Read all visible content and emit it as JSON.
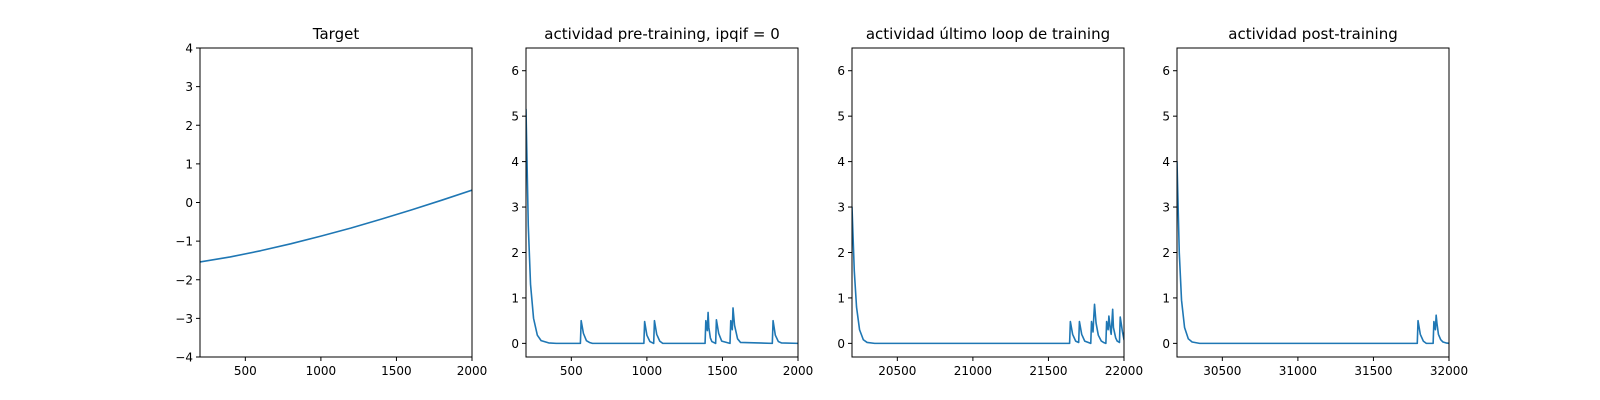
{
  "chart_data": [
    {
      "type": "line",
      "title": "Target",
      "xlabel": "",
      "ylabel": "",
      "xlim": [
        200,
        2000
      ],
      "ylim": [
        -4,
        4
      ],
      "xticks": [
        500,
        1000,
        1500,
        2000
      ],
      "xtick_labels": [
        "500",
        "1000",
        "1500",
        "2000"
      ],
      "yticks": [
        -4,
        -3,
        -2,
        -1,
        0,
        1,
        2,
        3,
        4
      ],
      "ytick_labels": [
        "−4",
        "−3",
        "−2",
        "−1",
        "0",
        "1",
        "2",
        "3",
        "4"
      ],
      "grid": false,
      "series": [
        {
          "color": "#1f77b4",
          "x": [
            200,
            400,
            600,
            800,
            1000,
            1200,
            1400,
            1600,
            1800,
            2000
          ],
          "y": [
            -1.54,
            -1.41,
            -1.25,
            -1.07,
            -0.87,
            -0.66,
            -0.43,
            -0.19,
            0.06,
            0.32
          ]
        }
      ]
    },
    {
      "type": "line",
      "title": "actividad pre-training, ipqif = 0",
      "xlabel": "",
      "ylabel": "",
      "xlim": [
        200,
        2000
      ],
      "ylim": [
        -0.3,
        6.5
      ],
      "xticks": [
        500,
        1000,
        1500,
        2000
      ],
      "xtick_labels": [
        "500",
        "1000",
        "1500",
        "2000"
      ],
      "yticks": [
        0,
        1,
        2,
        3,
        4,
        5,
        6
      ],
      "ytick_labels": [
        "0",
        "1",
        "2",
        "3",
        "4",
        "5",
        "6"
      ],
      "grid": false,
      "series": [
        {
          "color": "#1f77b4",
          "x": [
            200,
            215,
            230,
            250,
            275,
            300,
            350,
            400,
            560,
            565,
            580,
            600,
            620,
            640,
            980,
            985,
            1000,
            1020,
            1045,
            1050,
            1065,
            1085,
            1105,
            1385,
            1390,
            1400,
            1405,
            1410,
            1420,
            1430,
            1455,
            1460,
            1475,
            1495,
            1550,
            1555,
            1565,
            1570,
            1580,
            1600,
            1620,
            1830,
            1835,
            1850,
            1870,
            1890,
            2000
          ],
          "y": [
            5.15,
            2.6,
            1.3,
            0.55,
            0.18,
            0.06,
            0.01,
            0.0,
            0.0,
            0.5,
            0.22,
            0.06,
            0.02,
            0.0,
            0.0,
            0.48,
            0.18,
            0.04,
            0.0,
            0.5,
            0.2,
            0.05,
            0.0,
            0.0,
            0.5,
            0.28,
            0.68,
            0.35,
            0.12,
            0.04,
            0.0,
            0.52,
            0.22,
            0.05,
            0.0,
            0.5,
            0.3,
            0.78,
            0.4,
            0.1,
            0.02,
            0.0,
            0.5,
            0.18,
            0.04,
            0.01,
            0.0
          ]
        }
      ]
    },
    {
      "type": "line",
      "title": "actividad último loop de training",
      "xlabel": "",
      "ylabel": "",
      "xlim": [
        20200,
        22000
      ],
      "ylim": [
        -0.3,
        6.5
      ],
      "xticks": [
        20500,
        21000,
        21500,
        22000
      ],
      "xtick_labels": [
        "20500",
        "21000",
        "21500",
        "22000"
      ],
      "yticks": [
        0,
        1,
        2,
        3,
        4,
        5,
        6
      ],
      "ytick_labels": [
        "0",
        "1",
        "2",
        "3",
        "4",
        "5",
        "6"
      ],
      "grid": false,
      "series": [
        {
          "color": "#1f77b4",
          "x": [
            20200,
            20215,
            20230,
            20250,
            20275,
            20300,
            20350,
            20400,
            21640,
            21645,
            21660,
            21680,
            21700,
            21705,
            21720,
            21740,
            21780,
            21785,
            21795,
            21800,
            21805,
            21815,
            21830,
            21850,
            21865,
            21880,
            21885,
            21895,
            21900,
            21910,
            21915,
            21925,
            21930,
            21945,
            21955,
            21970,
            21975,
            21990,
            22000
          ],
          "y": [
            3.0,
            1.6,
            0.8,
            0.3,
            0.08,
            0.02,
            0.0,
            0.0,
            0.0,
            0.48,
            0.2,
            0.05,
            0.02,
            0.48,
            0.2,
            0.05,
            0.0,
            0.48,
            0.25,
            0.58,
            0.86,
            0.45,
            0.18,
            0.05,
            0.02,
            0.0,
            0.48,
            0.3,
            0.6,
            0.3,
            0.2,
            0.75,
            0.35,
            0.12,
            0.05,
            0.02,
            0.58,
            0.25,
            0.08
          ]
        }
      ]
    },
    {
      "type": "line",
      "title": "actividad post-training",
      "xlabel": "",
      "ylabel": "",
      "xlim": [
        30200,
        32000
      ],
      "ylim": [
        -0.3,
        6.5
      ],
      "xticks": [
        30500,
        31000,
        31500,
        32000
      ],
      "xtick_labels": [
        "30500",
        "31000",
        "31500",
        "32000"
      ],
      "yticks": [
        0,
        1,
        2,
        3,
        4,
        5,
        6
      ],
      "ytick_labels": [
        "0",
        "1",
        "2",
        "3",
        "4",
        "5",
        "6"
      ],
      "grid": false,
      "series": [
        {
          "color": "#1f77b4",
          "x": [
            30200,
            30215,
            30230,
            30250,
            30275,
            30300,
            30350,
            30400,
            31790,
            31795,
            31810,
            31830,
            31850,
            31895,
            31900,
            31910,
            31915,
            31920,
            31930,
            31945,
            31960,
            31980,
            32000
          ],
          "y": [
            4.0,
            2.0,
            0.95,
            0.35,
            0.1,
            0.03,
            0.0,
            0.0,
            0.0,
            0.5,
            0.2,
            0.05,
            0.0,
            0.0,
            0.48,
            0.3,
            0.62,
            0.45,
            0.2,
            0.08,
            0.03,
            0.01,
            0.0
          ]
        }
      ]
    }
  ]
}
